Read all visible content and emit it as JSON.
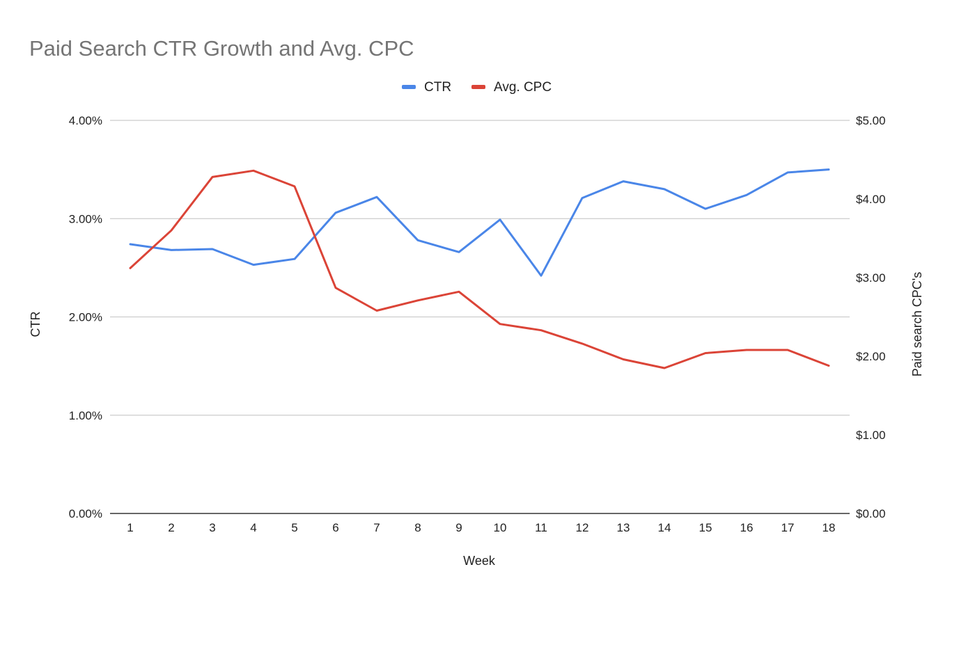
{
  "chart_data": {
    "type": "line",
    "title": "Paid Search CTR Growth and Avg. CPC",
    "xlabel": "Week",
    "ylabel_left": "CTR",
    "ylabel_right": "Paid search CPC's",
    "categories": [
      "1",
      "2",
      "3",
      "4",
      "5",
      "6",
      "7",
      "8",
      "9",
      "10",
      "11",
      "12",
      "13",
      "14",
      "15",
      "16",
      "17",
      "18"
    ],
    "left_axis": {
      "ylim": [
        0,
        4
      ],
      "ticks": [
        0,
        1,
        2,
        3,
        4
      ],
      "tick_labels": [
        "0.00%",
        "1.00%",
        "2.00%",
        "3.00%",
        "4.00%"
      ]
    },
    "right_axis": {
      "ylim": [
        0,
        5
      ],
      "ticks": [
        0,
        1,
        2,
        3,
        4,
        5
      ],
      "tick_labels": [
        "$0.00",
        "$1.00",
        "$2.00",
        "$3.00",
        "$4.00",
        "$5.00"
      ]
    },
    "grid": true,
    "legend_position": "top-center",
    "series": [
      {
        "name": "CTR",
        "axis": "left",
        "color": "#4a86e8",
        "values": [
          2.74,
          2.68,
          2.69,
          2.53,
          2.59,
          3.06,
          3.22,
          2.78,
          2.66,
          2.99,
          2.42,
          3.21,
          3.38,
          3.3,
          3.1,
          3.24,
          3.47,
          3.5
        ]
      },
      {
        "name": "Avg. CPC",
        "axis": "right",
        "color": "#db4437",
        "values": [
          3.12,
          3.6,
          4.28,
          4.36,
          4.16,
          2.87,
          2.58,
          2.71,
          2.82,
          2.41,
          2.33,
          2.16,
          1.96,
          1.85,
          2.04,
          2.08,
          2.08,
          1.88
        ]
      }
    ]
  }
}
